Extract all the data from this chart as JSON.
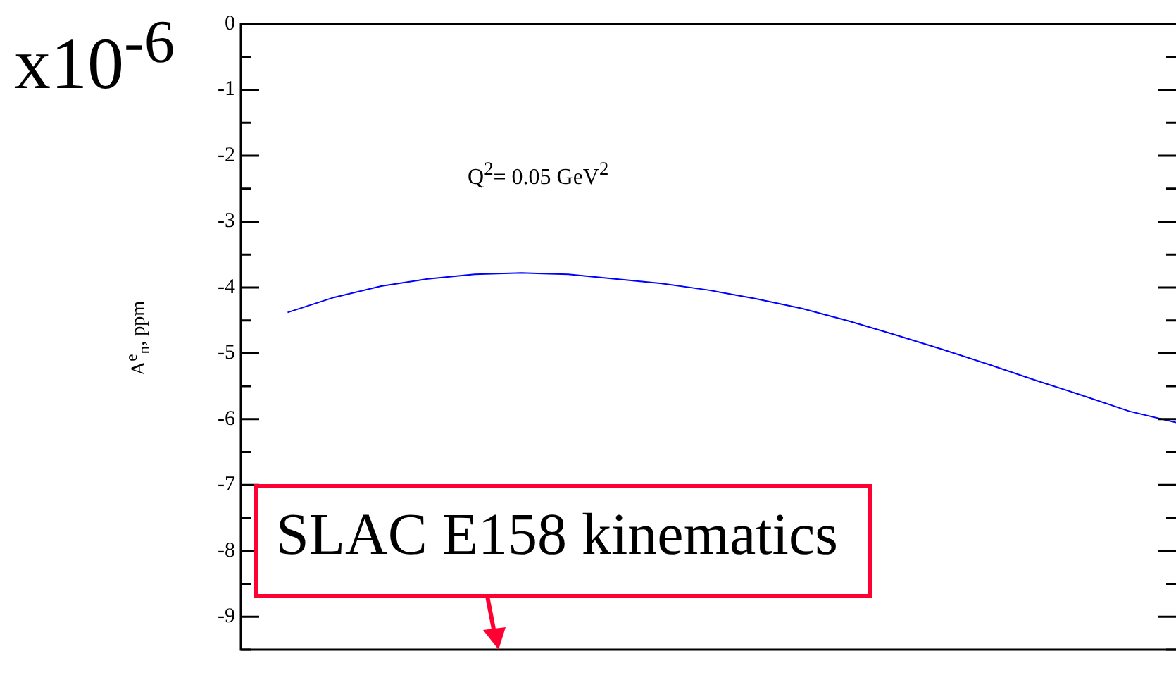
{
  "chart_data": {
    "type": "line",
    "ylabel": "A$^{e}$$_{n}$, ppm",
    "annotations": [
      "x10$^{-6}$",
      "Q$^{2}$= 0.05 GeV$^{2}$",
      "SLAC E158 kinematics"
    ],
    "categories": [
      null,
      null,
      null,
      null,
      null,
      null,
      null,
      null,
      null,
      null,
      null,
      null,
      null,
      null,
      null,
      null,
      null,
      null,
      null,
      null,
      null
    ],
    "series": [
      {
        "color": "#0000ff",
        "values": [
          null,
          -4.38,
          -4.15,
          -3.98,
          -3.87,
          -3.8,
          -3.78,
          -3.8,
          -3.87,
          -3.94,
          -4.04,
          -4.17,
          -4.32,
          -4.51,
          -4.72,
          -4.94,
          -5.17,
          -5.41,
          -5.64,
          -5.88,
          -6.05
        ]
      }
    ],
    "ylim": [
      -9.5,
      0
    ],
    "yticks": [
      0,
      {
        "value": -0.5,
        "label": null
      },
      -1,
      {
        "value": -1.5,
        "label": null
      },
      -2,
      {
        "value": -2.5,
        "label": null
      },
      -3,
      {
        "value": -3.5,
        "label": null
      },
      -4,
      {
        "value": -4.5,
        "label": null
      },
      -5,
      {
        "value": -5.5,
        "label": null
      },
      -6,
      {
        "value": -6.5,
        "label": null
      },
      -7,
      {
        "value": -7.5,
        "label": null
      },
      -8,
      {
        "value": -8.5,
        "label": null
      },
      -9,
      {
        "value": -9.5,
        "label": null
      }
    ],
    "grid": false,
    "legend": false,
    "marker": "none",
    "line_style": "solid"
  }
}
